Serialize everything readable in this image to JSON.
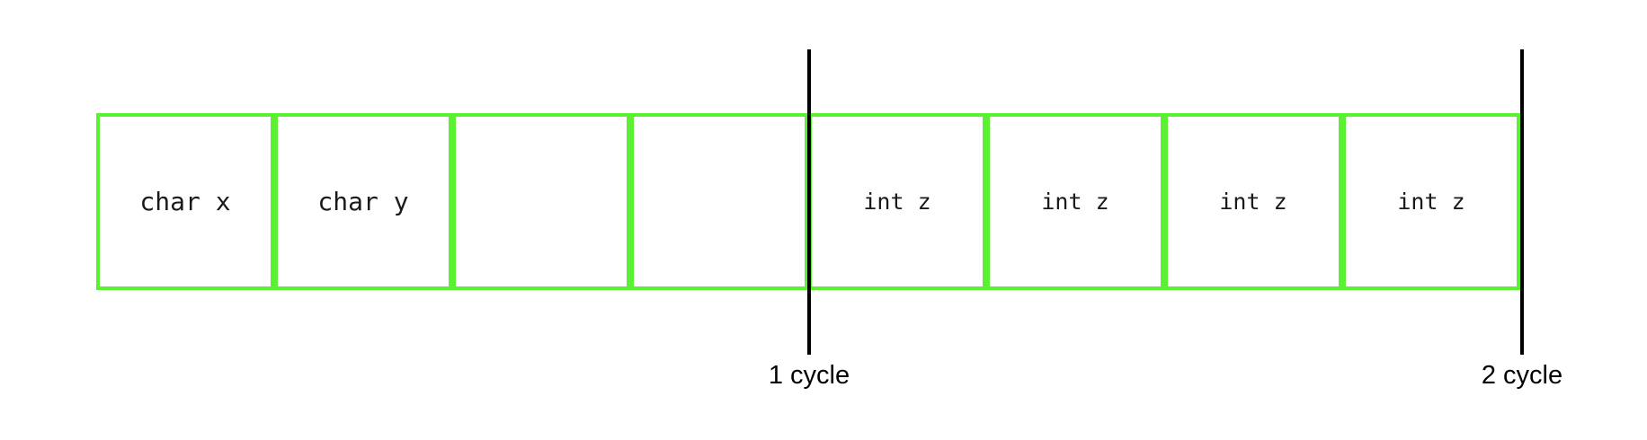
{
  "cells": [
    {
      "label": "char x"
    },
    {
      "label": "char y"
    },
    {
      "label": ""
    },
    {
      "label": ""
    },
    {
      "label": "int z"
    },
    {
      "label": "int z"
    },
    {
      "label": "int z"
    },
    {
      "label": "int z"
    }
  ],
  "cycles": {
    "first": "1 cycle",
    "second": "2 cycle"
  },
  "colors": {
    "cell_border": "#5cf032",
    "divider": "#000000"
  }
}
